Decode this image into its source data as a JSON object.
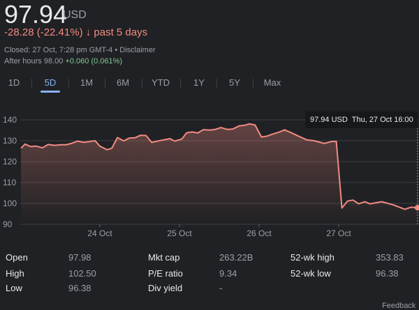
{
  "quote": {
    "price": "97.94",
    "currency": "USD",
    "change": "-28.28 (-22.41%)",
    "change_arrow": "↓",
    "period": "past 5 days",
    "closed": "Closed: 27 Oct, 7:28 pm GMT-4",
    "disclaimer": "Disclaimer",
    "after_hours_label": "After hours 98.00",
    "after_hours_change": "+0.060 (0.061%)"
  },
  "tabs": [
    {
      "label": "1D"
    },
    {
      "label": "5D",
      "selected": true
    },
    {
      "label": "1M"
    },
    {
      "label": "6M"
    },
    {
      "label": "YTD"
    },
    {
      "label": "1Y"
    },
    {
      "label": "5Y"
    },
    {
      "label": "Max"
    }
  ],
  "tooltip": {
    "value": "97.94 USD",
    "time": "Thu, 27 Oct 16:00"
  },
  "colors": {
    "line": "#f28b82",
    "accent": "#8ab4f8",
    "negative": "#f28b82",
    "positive": "#81c995",
    "background": "#202124"
  },
  "chart_data": {
    "type": "area",
    "ylim": [
      90,
      140
    ],
    "yticks": [
      90,
      100,
      110,
      120,
      130,
      140
    ],
    "xlim": [
      0,
      5
    ],
    "xticks": [
      {
        "x": 1,
        "label": "24 Oct"
      },
      {
        "x": 2,
        "label": "25 Oct"
      },
      {
        "x": 3,
        "label": "26 Oct"
      },
      {
        "x": 4,
        "label": "27 Oct"
      }
    ],
    "grid": true,
    "series": [
      {
        "points": [
          [
            0.01,
            126.4
          ],
          [
            0.06,
            128.4
          ],
          [
            0.13,
            127.2
          ],
          [
            0.2,
            127.4
          ],
          [
            0.28,
            126.6
          ],
          [
            0.35,
            128.2
          ],
          [
            0.43,
            127.8
          ],
          [
            0.52,
            128.1
          ],
          [
            0.58,
            128.1
          ],
          [
            0.65,
            128.8
          ],
          [
            0.72,
            129.8
          ],
          [
            0.8,
            129.2
          ],
          [
            0.94,
            130.0
          ],
          [
            1.0,
            127.4
          ],
          [
            1.09,
            125.7
          ],
          [
            1.15,
            126.4
          ],
          [
            1.22,
            131.5
          ],
          [
            1.3,
            129.9
          ],
          [
            1.37,
            131.3
          ],
          [
            1.44,
            131.4
          ],
          [
            1.51,
            132.6
          ],
          [
            1.58,
            132.5
          ],
          [
            1.65,
            129.2
          ],
          [
            1.76,
            130.1
          ],
          [
            1.88,
            131.0
          ],
          [
            1.94,
            129.8
          ],
          [
            2.03,
            130.8
          ],
          [
            2.09,
            133.8
          ],
          [
            2.16,
            134.2
          ],
          [
            2.23,
            133.7
          ],
          [
            2.3,
            135.3
          ],
          [
            2.38,
            135.1
          ],
          [
            2.45,
            135.4
          ],
          [
            2.52,
            136.3
          ],
          [
            2.6,
            135.4
          ],
          [
            2.67,
            135.6
          ],
          [
            2.75,
            137.1
          ],
          [
            2.82,
            137.4
          ],
          [
            2.88,
            138.1
          ],
          [
            2.95,
            137.5
          ],
          [
            3.03,
            131.8
          ],
          [
            3.1,
            132.2
          ],
          [
            3.17,
            133.2
          ],
          [
            3.25,
            134.1
          ],
          [
            3.32,
            135.2
          ],
          [
            3.4,
            133.9
          ],
          [
            3.5,
            132.1
          ],
          [
            3.6,
            130.4
          ],
          [
            3.69,
            130.0
          ],
          [
            3.82,
            128.7
          ],
          [
            3.91,
            129.6
          ],
          [
            3.97,
            129.7
          ],
          [
            4.04,
            97.8
          ],
          [
            4.11,
            101.1
          ],
          [
            4.18,
            101.6
          ],
          [
            4.25,
            99.8
          ],
          [
            4.33,
            100.8
          ],
          [
            4.39,
            99.8
          ],
          [
            4.54,
            100.8
          ],
          [
            4.68,
            99.4
          ],
          [
            4.83,
            97.2
          ],
          [
            4.91,
            98.2
          ],
          [
            4.99,
            97.94
          ]
        ]
      }
    ]
  },
  "stats": [
    [
      {
        "label": "Open",
        "value": "97.98"
      },
      {
        "label": "Mkt cap",
        "value": "263.22B"
      },
      {
        "label": "52-wk high",
        "value": "353.83"
      }
    ],
    [
      {
        "label": "High",
        "value": "102.50"
      },
      {
        "label": "P/E ratio",
        "value": "9.34"
      },
      {
        "label": "52-wk low",
        "value": "96.38"
      }
    ],
    [
      {
        "label": "Low",
        "value": "96.38"
      },
      {
        "label": "Div yield",
        "value": "-"
      }
    ]
  ],
  "footer": {
    "feedback": "Feedback"
  }
}
